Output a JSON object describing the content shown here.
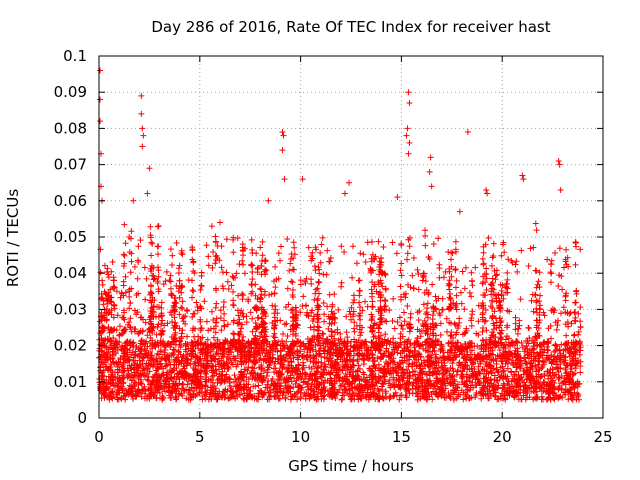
{
  "chart_data": {
    "type": "scatter",
    "title": "Day 286 of 2016, Rate Of TEC Index for receiver hast",
    "xlabel": "GPS time / hours",
    "ylabel": "ROTI / TECUs",
    "xlim": [
      0,
      25
    ],
    "ylim": [
      0,
      0.1
    ],
    "x_ticks": [
      0,
      5,
      10,
      15,
      20,
      25
    ],
    "y_ticks": [
      0,
      0.01,
      0.02,
      0.03,
      0.04,
      0.05,
      0.06,
      0.07,
      0.08,
      0.09,
      0.1
    ],
    "x_tick_labels": [
      "0",
      "5",
      "10",
      "15",
      "20",
      "25"
    ],
    "y_tick_labels": [
      "0",
      "0.01",
      "0.02",
      "0.03",
      "0.04",
      "0.05",
      "0.06",
      "0.07",
      "0.08",
      "0.09",
      "0.1"
    ],
    "grid": true,
    "marker": "+",
    "color": "#ff0000",
    "data_range_x": [
      0,
      23.9
    ],
    "baseline_range": [
      0.005,
      0.03
    ],
    "notable_points": [
      {
        "x": 0.05,
        "y": 0.096
      },
      {
        "x": 0.05,
        "y": 0.088
      },
      {
        "x": 0.05,
        "y": 0.082
      },
      {
        "x": 0.1,
        "y": 0.073
      },
      {
        "x": 0.1,
        "y": 0.064
      },
      {
        "x": 0.15,
        "y": 0.06
      },
      {
        "x": 2.1,
        "y": 0.089
      },
      {
        "x": 2.1,
        "y": 0.084
      },
      {
        "x": 2.15,
        "y": 0.08
      },
      {
        "x": 2.2,
        "y": 0.078
      },
      {
        "x": 2.15,
        "y": 0.075
      },
      {
        "x": 2.5,
        "y": 0.069
      },
      {
        "x": 1.7,
        "y": 0.06
      },
      {
        "x": 2.4,
        "y": 0.062
      },
      {
        "x": 9.1,
        "y": 0.079
      },
      {
        "x": 9.15,
        "y": 0.078
      },
      {
        "x": 9.1,
        "y": 0.074
      },
      {
        "x": 9.2,
        "y": 0.066
      },
      {
        "x": 10.1,
        "y": 0.066
      },
      {
        "x": 12.4,
        "y": 0.065
      },
      {
        "x": 12.2,
        "y": 0.062
      },
      {
        "x": 15.35,
        "y": 0.09
      },
      {
        "x": 15.4,
        "y": 0.087
      },
      {
        "x": 15.3,
        "y": 0.08
      },
      {
        "x": 15.25,
        "y": 0.078
      },
      {
        "x": 15.4,
        "y": 0.076
      },
      {
        "x": 15.35,
        "y": 0.073
      },
      {
        "x": 16.45,
        "y": 0.072
      },
      {
        "x": 16.4,
        "y": 0.068
      },
      {
        "x": 16.5,
        "y": 0.064
      },
      {
        "x": 18.3,
        "y": 0.079
      },
      {
        "x": 19.2,
        "y": 0.063
      },
      {
        "x": 19.25,
        "y": 0.062
      },
      {
        "x": 21.0,
        "y": 0.067
      },
      {
        "x": 21.05,
        "y": 0.066
      },
      {
        "x": 22.8,
        "y": 0.071
      },
      {
        "x": 22.85,
        "y": 0.07
      },
      {
        "x": 22.9,
        "y": 0.063
      },
      {
        "x": 8.4,
        "y": 0.06
      },
      {
        "x": 14.8,
        "y": 0.061
      },
      {
        "x": 17.9,
        "y": 0.057
      },
      {
        "x": 6.0,
        "y": 0.054
      },
      {
        "x": 5.6,
        "y": 0.053
      }
    ]
  }
}
